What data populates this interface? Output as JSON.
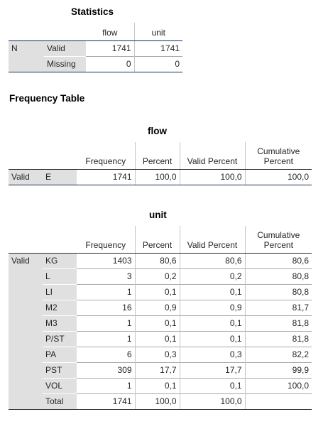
{
  "statistics": {
    "title": "Statistics",
    "columns": [
      "flow",
      "unit"
    ],
    "stub": "N",
    "rows": [
      {
        "label": "Valid",
        "flow": "1741",
        "unit": "1741"
      },
      {
        "label": "Missing",
        "flow": "0",
        "unit": "0"
      }
    ]
  },
  "frequency_table_heading": "Frequency Table",
  "flow_table": {
    "title": "flow",
    "headers": {
      "frequency": "Frequency",
      "percent": "Percent",
      "valid_percent": "Valid Percent",
      "cumulative_line1": "Cumulative",
      "cumulative_line2": "Percent"
    },
    "group": "Valid",
    "rows": [
      {
        "label": "E",
        "frequency": "1741",
        "percent": "100,0",
        "valid_percent": "100,0",
        "cumulative": "100,0"
      }
    ]
  },
  "unit_table": {
    "title": "unit",
    "headers": {
      "frequency": "Frequency",
      "percent": "Percent",
      "valid_percent": "Valid Percent",
      "cumulative_line1": "Cumulative",
      "cumulative_line2": "Percent"
    },
    "group": "Valid",
    "rows": [
      {
        "label": "KG",
        "frequency": "1403",
        "percent": "80,6",
        "valid_percent": "80,6",
        "cumulative": "80,6"
      },
      {
        "label": "L",
        "frequency": "3",
        "percent": "0,2",
        "valid_percent": "0,2",
        "cumulative": "80,8"
      },
      {
        "label": "LI",
        "frequency": "1",
        "percent": "0,1",
        "valid_percent": "0,1",
        "cumulative": "80,8"
      },
      {
        "label": "M2",
        "frequency": "16",
        "percent": "0,9",
        "valid_percent": "0,9",
        "cumulative": "81,7"
      },
      {
        "label": "M3",
        "frequency": "1",
        "percent": "0,1",
        "valid_percent": "0,1",
        "cumulative": "81,8"
      },
      {
        "label": "P/ST",
        "frequency": "1",
        "percent": "0,1",
        "valid_percent": "0,1",
        "cumulative": "81,8"
      },
      {
        "label": "PA",
        "frequency": "6",
        "percent": "0,3",
        "valid_percent": "0,3",
        "cumulative": "82,2"
      },
      {
        "label": "PST",
        "frequency": "309",
        "percent": "17,7",
        "valid_percent": "17,7",
        "cumulative": "99,9"
      },
      {
        "label": "VOL",
        "frequency": "1",
        "percent": "0,1",
        "valid_percent": "0,1",
        "cumulative": "100,0"
      },
      {
        "label": "Total",
        "frequency": "1741",
        "percent": "100,0",
        "valid_percent": "100,0",
        "cumulative": ""
      }
    ]
  }
}
